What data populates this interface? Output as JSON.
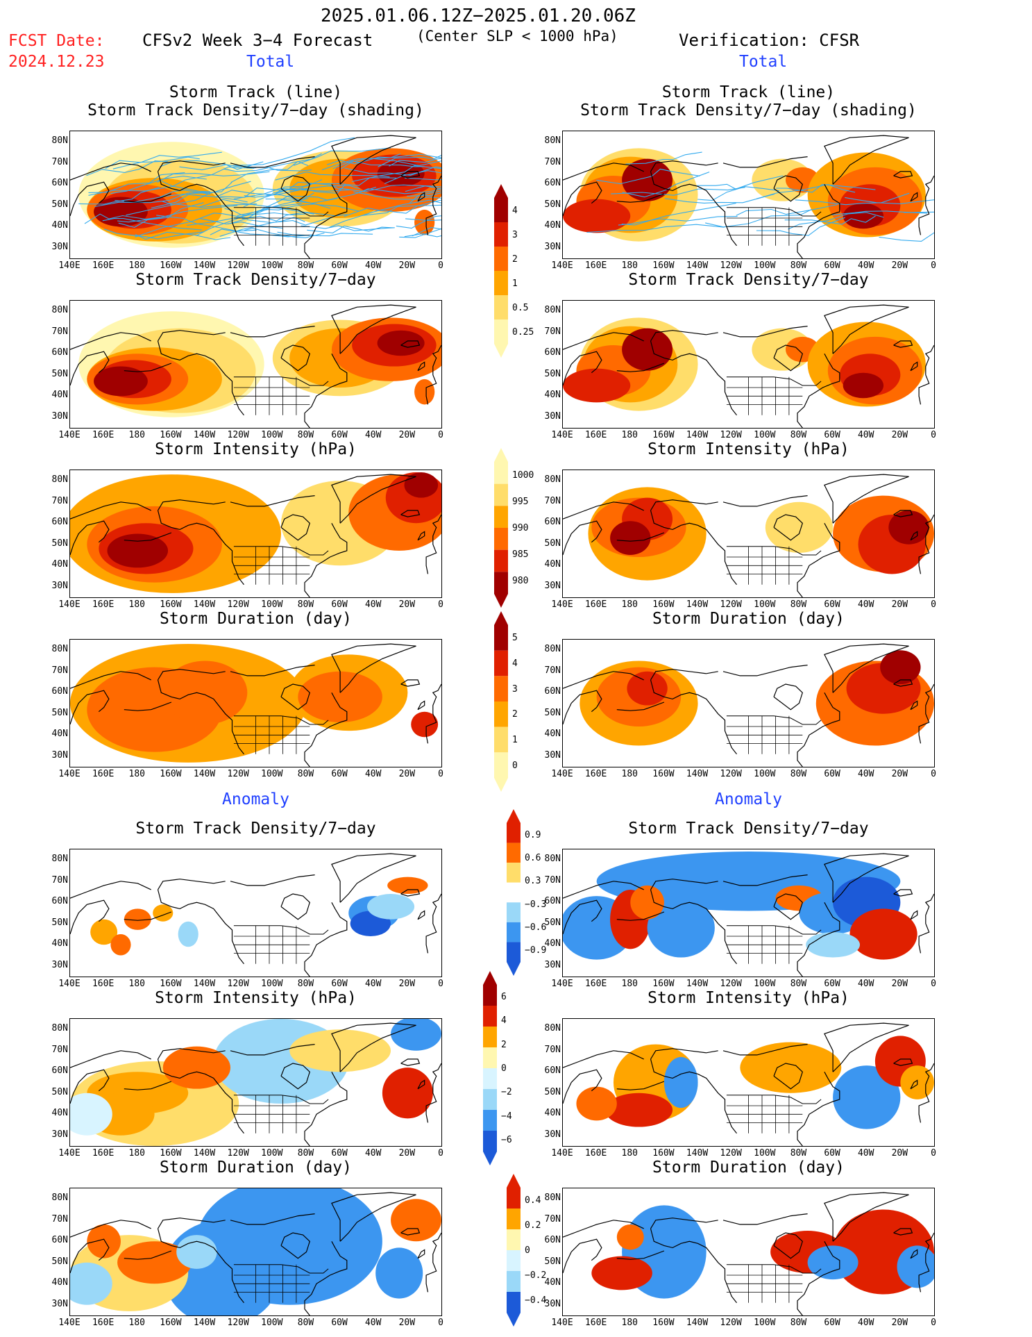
{
  "header": {
    "date_range": "2025.01.06.12Z−2025.01.20.06Z",
    "fcst_date_label": "FCST Date:",
    "fcst_date": "2024.12.23",
    "model_title": "CFSv2 Week 3−4 Forecast",
    "criteria": "(Center SLP < 1000 hPa)",
    "verification": "Verification: CFSR"
  },
  "sections": {
    "total": "Total",
    "anomaly": "Anomaly"
  },
  "panel_titles": {
    "track_line": "Storm Track (line)",
    "track_density_shading": "Storm Track Density/7−day (shading)",
    "track_density": "Storm Track Density/7−day",
    "intensity": "Storm Intensity (hPa)",
    "duration": "Storm Duration (day)"
  },
  "axes": {
    "lat_ticks": [
      "80N",
      "70N",
      "60N",
      "50N",
      "40N",
      "30N"
    ],
    "lon_ticks": [
      "140E",
      "160E",
      "180",
      "160W",
      "140W",
      "120W",
      "100W",
      "80W",
      "60W",
      "40W",
      "20W",
      "0"
    ]
  },
  "colorbars": {
    "density_total": [
      "4",
      "3",
      "2",
      "1",
      "0.5",
      "0.25"
    ],
    "intensity_total": [
      "1000",
      "995",
      "990",
      "985",
      "980"
    ],
    "duration_total": [
      "5",
      "4",
      "3",
      "2",
      "1",
      "0"
    ],
    "density_anom": [
      "0.9",
      "0.6",
      "0.3",
      "−0.3",
      "−0.6",
      "−0.9"
    ],
    "intensity_anom": [
      "6",
      "4",
      "2",
      "0",
      "−2",
      "−4",
      "−6"
    ],
    "duration_anom": [
      "0.4",
      "0.2",
      "0",
      "−0.2",
      "−0.4"
    ]
  },
  "colors": {
    "warm": [
      "#fff7b0",
      "#ffdd6a",
      "#ffa500",
      "#ff6a00",
      "#e02000",
      "#a00000"
    ],
    "cool": [
      "#d8f4ff",
      "#9ad8f8",
      "#3c96f0",
      "#1c5ad8"
    ],
    "track_line": "#33aaee"
  }
}
